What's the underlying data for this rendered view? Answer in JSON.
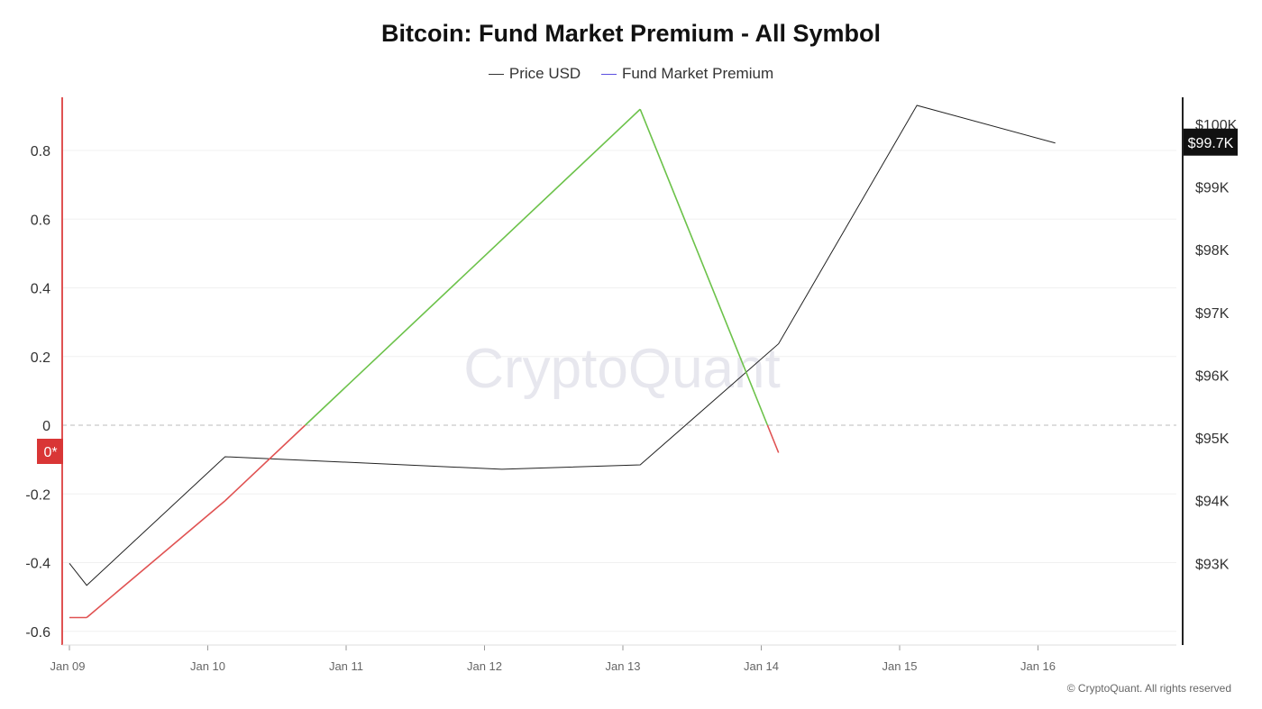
{
  "chart_data": {
    "type": "line",
    "title": "Bitcoin: Fund Market Premium - All Symbol",
    "x_tick_labels": [
      "Jan 09",
      "Jan 10",
      "Jan 11",
      "Jan 12",
      "Jan 13",
      "Jan 14",
      "Jan 15",
      "Jan 16"
    ],
    "left_axis": {
      "ticks": [
        "0.8",
        "0.6",
        "0.4",
        "0.2",
        "0",
        "-0.2",
        "-0.4",
        "-0.6"
      ],
      "ylim": [
        -0.64,
        0.96
      ]
    },
    "right_axis": {
      "ticks": [
        "$100K",
        "$99K",
        "$98K",
        "$97K",
        "$96K",
        "$95K",
        "$94K",
        "$93K"
      ],
      "ylim": [
        92000,
        100400
      ]
    },
    "series": [
      {
        "name": "Price USD",
        "color": "#222222",
        "axis": "right",
        "x": [
          "Jan 09 00:00",
          "Jan 09 03:00",
          "Jan 10 03:00",
          "Jan 12 03:00",
          "Jan 13 03:00",
          "Jan 14 03:00",
          "Jan 15 03:00",
          "Jan 16 03:00"
        ],
        "values": [
          93000,
          92650,
          94700,
          94500,
          94570,
          96500,
          100300,
          99700
        ]
      },
      {
        "name": "Fund Market Premium",
        "color": "#5b4fe0",
        "positive_color": "#6cc24a",
        "negative_color": "#e05252",
        "axis": "left",
        "x": [
          "Jan 09 00:00",
          "Jan 09 03:00",
          "Jan 10 03:00",
          "Jan 13 03:00",
          "Jan 14 03:00"
        ],
        "values": [
          -0.56,
          -0.56,
          -0.22,
          0.92,
          -0.08
        ]
      }
    ],
    "zero_marker_label": "0*",
    "last_price_label": "$99.7K",
    "watermark": "CryptoQuant",
    "legend_position": "top-center",
    "grid": true
  },
  "copyright": "© CryptoQuant. All rights reserved"
}
